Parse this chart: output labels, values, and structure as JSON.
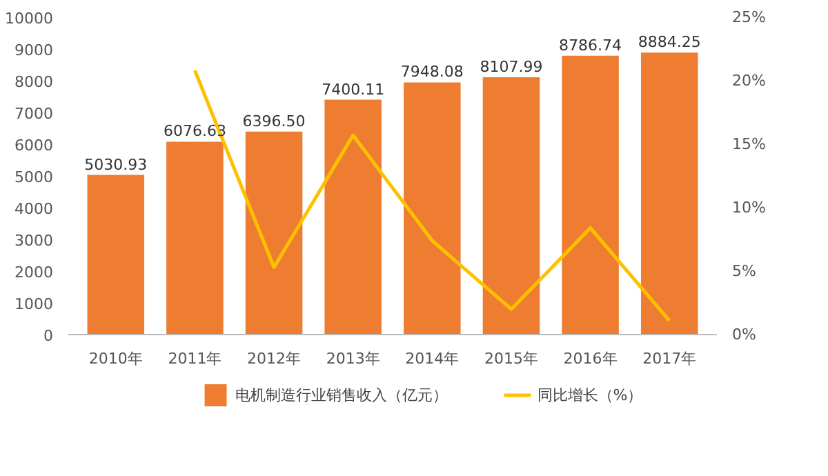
{
  "chart_data": {
    "type": "bar",
    "categories": [
      "2010年",
      "2011年",
      "2012年",
      "2013年",
      "2014年",
      "2015年",
      "2016年",
      "2017年"
    ],
    "series": [
      {
        "name": "电机制造行业销售收入（亿元）",
        "type": "bar",
        "color": "#ee7d31",
        "values": [
          5030.93,
          6076.63,
          6396.5,
          7400.11,
          7948.08,
          8107.99,
          8786.74,
          8884.25
        ],
        "value_labels": [
          "5030.93",
          "6076.63",
          "6396.50",
          "7400.11",
          "7948.08",
          "8107.99",
          "8786.74",
          "8884.25"
        ]
      },
      {
        "name": "同比增长（%）",
        "type": "line",
        "axis": "y2",
        "color": "#ffc000",
        "values": [
          null,
          20.8,
          5.3,
          15.7,
          7.4,
          2.0,
          8.4,
          1.1
        ]
      }
    ],
    "ylim": [
      0,
      10000
    ],
    "yticks": [
      0,
      1000,
      2000,
      3000,
      4000,
      5000,
      6000,
      7000,
      8000,
      9000,
      10000
    ],
    "y2lim": [
      0,
      25
    ],
    "y2ticks": [
      {
        "value": 0,
        "label": "0%"
      },
      {
        "value": 5,
        "label": "5%"
      },
      {
        "value": 10,
        "label": "10%"
      },
      {
        "value": 15,
        "label": "15%"
      },
      {
        "value": 20,
        "label": "20%"
      },
      {
        "value": 25,
        "label": "25%"
      }
    ],
    "legend": "bottom",
    "grid": false
  }
}
